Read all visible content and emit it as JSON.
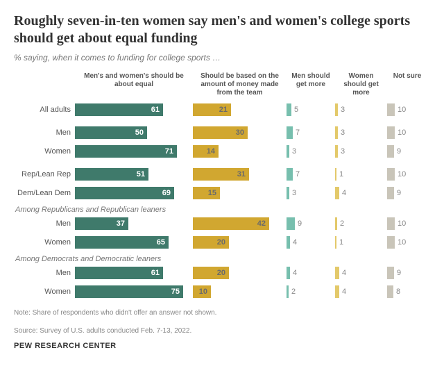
{
  "title": "Roughly seven-in-ten women say men's and women's college sports should get about equal funding",
  "subtitle": "% saying, when it comes to funding for college sports …",
  "columns": {
    "c1": "Men's and women's should be about equal",
    "c2": "Should be based on the amount of money made from the team",
    "c3": "Men should get more",
    "c4": "Women should get more",
    "c5": "Not sure"
  },
  "colors": {
    "c1": "#3f7a6b",
    "c2": "#d1a730",
    "c3": "#77bfae",
    "c4": "#e3c96a",
    "c5": "#c9c5b9",
    "text_in_bar": "#ffffff",
    "text_in_bar_light": "#6a6a6a"
  },
  "scales": {
    "c1_max": 80,
    "c2_max": 50,
    "c3_max": 50,
    "c4_max": 50,
    "c5_max": 50
  },
  "section_labels": {
    "rep_leaners": "Among Republicans and Republican leaners",
    "dem_leaners": "Among Democrats and Democratic leaners"
  },
  "groups": [
    {
      "rows": [
        {
          "label": "All adults",
          "v": [
            61,
            21,
            5,
            3,
            10
          ]
        }
      ]
    },
    {
      "rows": [
        {
          "label": "Men",
          "v": [
            50,
            30,
            7,
            3,
            10
          ]
        },
        {
          "label": "Women",
          "v": [
            71,
            14,
            3,
            3,
            9
          ]
        }
      ]
    },
    {
      "rows": [
        {
          "label": "Rep/Lean Rep",
          "v": [
            51,
            31,
            7,
            1,
            10
          ]
        },
        {
          "label": "Dem/Lean Dem",
          "v": [
            69,
            15,
            3,
            4,
            9
          ]
        }
      ]
    },
    {
      "section": "rep_leaners",
      "rows": [
        {
          "label": "Men",
          "v": [
            37,
            42,
            9,
            2,
            10
          ]
        },
        {
          "label": "Women",
          "v": [
            65,
            20,
            4,
            1,
            10
          ]
        }
      ]
    },
    {
      "section": "dem_leaners",
      "rows": [
        {
          "label": "Men",
          "v": [
            61,
            20,
            4,
            4,
            9
          ]
        },
        {
          "label": "Women",
          "v": [
            75,
            10,
            2,
            4,
            8
          ]
        }
      ]
    }
  ],
  "note1": "Note: Share of respondents who didn't offer an answer not shown.",
  "note2": "Source: Survey of U.S. adults conducted Feb. 7-13, 2022.",
  "logo": "PEW RESEARCH CENTER"
}
